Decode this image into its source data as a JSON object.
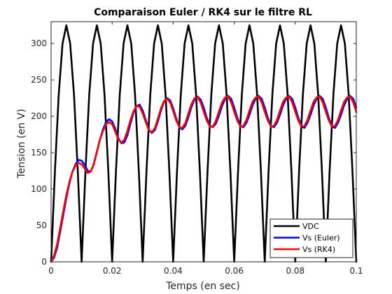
{
  "chart_data": {
    "type": "line",
    "title": "Comparaison Euler / RK4 sur le filtre RL",
    "xlabel": "Temps (en sec)",
    "ylabel": "Tension (en V)",
    "xlim": [
      0,
      0.1
    ],
    "ylim": [
      0,
      330
    ],
    "xticks": [
      0,
      0.02,
      0.04,
      0.06,
      0.08,
      0.1
    ],
    "xtick_labels": [
      "0",
      "0.02",
      "0.04",
      "0.06",
      "0.08",
      "0.1"
    ],
    "yticks": [
      0,
      50,
      100,
      150,
      200,
      250,
      300
    ],
    "ytick_labels": [
      "0",
      "50",
      "100",
      "150",
      "200",
      "250",
      "300"
    ],
    "grid": false,
    "legend_position": "bottom-right",
    "series": [
      {
        "name": "VDC",
        "color": "#000000",
        "description_values": "full-wave rectified sine, amplitude 325 V, 50 Hz",
        "x": [
          0,
          0.00125,
          0.0025,
          0.00375,
          0.005,
          0.00625,
          0.0075,
          0.00875,
          0.01,
          0.01125,
          0.0125,
          0.01375,
          0.015,
          0.01625,
          0.0175,
          0.01875,
          0.02,
          0.02125,
          0.0225,
          0.02375,
          0.025,
          0.02625,
          0.0275,
          0.02875,
          0.03,
          0.03125,
          0.0325,
          0.03375,
          0.035,
          0.03625,
          0.0375,
          0.03875,
          0.04,
          0.04125,
          0.0425,
          0.04375,
          0.045,
          0.04625,
          0.0475,
          0.04875,
          0.05,
          0.05125,
          0.0525,
          0.05375,
          0.055,
          0.05625,
          0.0575,
          0.05875,
          0.06,
          0.06125,
          0.0625,
          0.06375,
          0.065,
          0.06625,
          0.0675,
          0.06875,
          0.07,
          0.07125,
          0.0725,
          0.07375,
          0.075,
          0.07625,
          0.0775,
          0.07875,
          0.08,
          0.08125,
          0.0825,
          0.08375,
          0.085,
          0.08625,
          0.0875,
          0.08875,
          0.09,
          0.09125,
          0.0925,
          0.09375,
          0.095,
          0.09625,
          0.0975,
          0.09875,
          0.1
        ],
        "y": [
          0,
          124,
          230,
          300,
          325,
          300,
          230,
          124,
          0,
          124,
          230,
          300,
          325,
          300,
          230,
          124,
          0,
          124,
          230,
          300,
          325,
          300,
          230,
          124,
          0,
          124,
          230,
          300,
          325,
          300,
          230,
          124,
          0,
          124,
          230,
          300,
          325,
          300,
          230,
          124,
          0,
          124,
          230,
          300,
          325,
          300,
          230,
          124,
          0,
          124,
          230,
          300,
          325,
          300,
          230,
          124,
          0,
          124,
          230,
          300,
          325,
          300,
          230,
          124,
          0,
          124,
          230,
          300,
          325,
          300,
          230,
          124,
          0,
          124,
          230,
          300,
          325,
          300,
          230,
          124,
          0
        ]
      },
      {
        "name": "Vs (Euler)",
        "color": "#0000ff",
        "x": [
          0,
          0.001,
          0.002,
          0.003,
          0.004,
          0.005,
          0.006,
          0.007,
          0.008,
          0.009,
          0.01,
          0.011,
          0.012,
          0.013,
          0.014,
          0.015,
          0.016,
          0.017,
          0.018,
          0.019,
          0.02,
          0.021,
          0.022,
          0.023,
          0.024,
          0.025,
          0.026,
          0.027,
          0.028,
          0.029,
          0.03,
          0.031,
          0.032,
          0.033,
          0.034,
          0.035,
          0.036,
          0.037,
          0.038,
          0.039,
          0.04,
          0.041,
          0.042,
          0.043,
          0.044,
          0.045,
          0.046,
          0.047,
          0.048,
          0.049,
          0.05,
          0.051,
          0.052,
          0.053,
          0.054,
          0.055,
          0.056,
          0.057,
          0.058,
          0.059,
          0.06,
          0.061,
          0.062,
          0.063,
          0.064,
          0.065,
          0.066,
          0.067,
          0.068,
          0.069,
          0.07,
          0.071,
          0.072,
          0.073,
          0.074,
          0.075,
          0.076,
          0.077,
          0.078,
          0.079,
          0.08,
          0.081,
          0.082,
          0.083,
          0.084,
          0.085,
          0.086,
          0.087,
          0.088,
          0.089,
          0.09,
          0.091,
          0.092,
          0.093,
          0.094,
          0.095,
          0.096,
          0.097,
          0.098,
          0.099,
          0.1
        ],
        "y": [
          0,
          6,
          20,
          42,
          65,
          88,
          108,
          124,
          134,
          140,
          139,
          133,
          125,
          124,
          134,
          151,
          168,
          182,
          192,
          196,
          193,
          183,
          170,
          163,
          164,
          174,
          190,
          205,
          214,
          216,
          208,
          195,
          182,
          177,
          181,
          193,
          208,
          220,
          225,
          222,
          211,
          197,
          185,
          182,
          187,
          199,
          213,
          223,
          227,
          223,
          212,
          198,
          187,
          185,
          190,
          201,
          214,
          224,
          228,
          224,
          212,
          198,
          187,
          185,
          191,
          202,
          215,
          224,
          228,
          224,
          212,
          198,
          187,
          185,
          191,
          202,
          215,
          224,
          228,
          224,
          212,
          198,
          186,
          184,
          191,
          202,
          215,
          224,
          228,
          224,
          212,
          198,
          186,
          184,
          191,
          202,
          215,
          224,
          228,
          224,
          212
        ]
      },
      {
        "name": "Vs (RK4)",
        "color": "#ff0000",
        "x": [
          0,
          0.001,
          0.002,
          0.003,
          0.004,
          0.005,
          0.006,
          0.007,
          0.008,
          0.009,
          0.01,
          0.011,
          0.012,
          0.013,
          0.014,
          0.015,
          0.016,
          0.017,
          0.018,
          0.019,
          0.02,
          0.021,
          0.022,
          0.023,
          0.024,
          0.025,
          0.026,
          0.027,
          0.028,
          0.029,
          0.03,
          0.031,
          0.032,
          0.033,
          0.034,
          0.035,
          0.036,
          0.037,
          0.038,
          0.039,
          0.04,
          0.041,
          0.042,
          0.043,
          0.044,
          0.045,
          0.046,
          0.047,
          0.048,
          0.049,
          0.05,
          0.051,
          0.052,
          0.053,
          0.054,
          0.055,
          0.056,
          0.057,
          0.058,
          0.059,
          0.06,
          0.061,
          0.062,
          0.063,
          0.064,
          0.065,
          0.066,
          0.067,
          0.068,
          0.069,
          0.07,
          0.071,
          0.072,
          0.073,
          0.074,
          0.075,
          0.076,
          0.077,
          0.078,
          0.079,
          0.08,
          0.081,
          0.082,
          0.083,
          0.084,
          0.085,
          0.086,
          0.087,
          0.088,
          0.089,
          0.09,
          0.091,
          0.092,
          0.093,
          0.094,
          0.095,
          0.096,
          0.097,
          0.098,
          0.099,
          0.1
        ],
        "y": [
          0,
          9,
          25,
          47,
          70,
          92,
          110,
          124,
          132,
          136,
          134,
          128,
          122,
          124,
          135,
          152,
          168,
          180,
          189,
          192,
          189,
          179,
          168,
          164,
          168,
          180,
          195,
          207,
          214,
          213,
          204,
          192,
          181,
          178,
          184,
          197,
          211,
          221,
          224,
          219,
          207,
          194,
          185,
          184,
          191,
          204,
          217,
          225,
          226,
          219,
          206,
          194,
          186,
          186,
          194,
          207,
          219,
          226,
          227,
          219,
          206,
          194,
          186,
          187,
          195,
          208,
          220,
          226,
          227,
          219,
          206,
          194,
          186,
          187,
          195,
          208,
          220,
          226,
          227,
          219,
          206,
          194,
          186,
          187,
          195,
          208,
          220,
          226,
          227,
          219,
          206,
          194,
          186,
          187,
          195,
          208,
          220,
          226,
          227,
          219,
          206
        ]
      }
    ]
  }
}
